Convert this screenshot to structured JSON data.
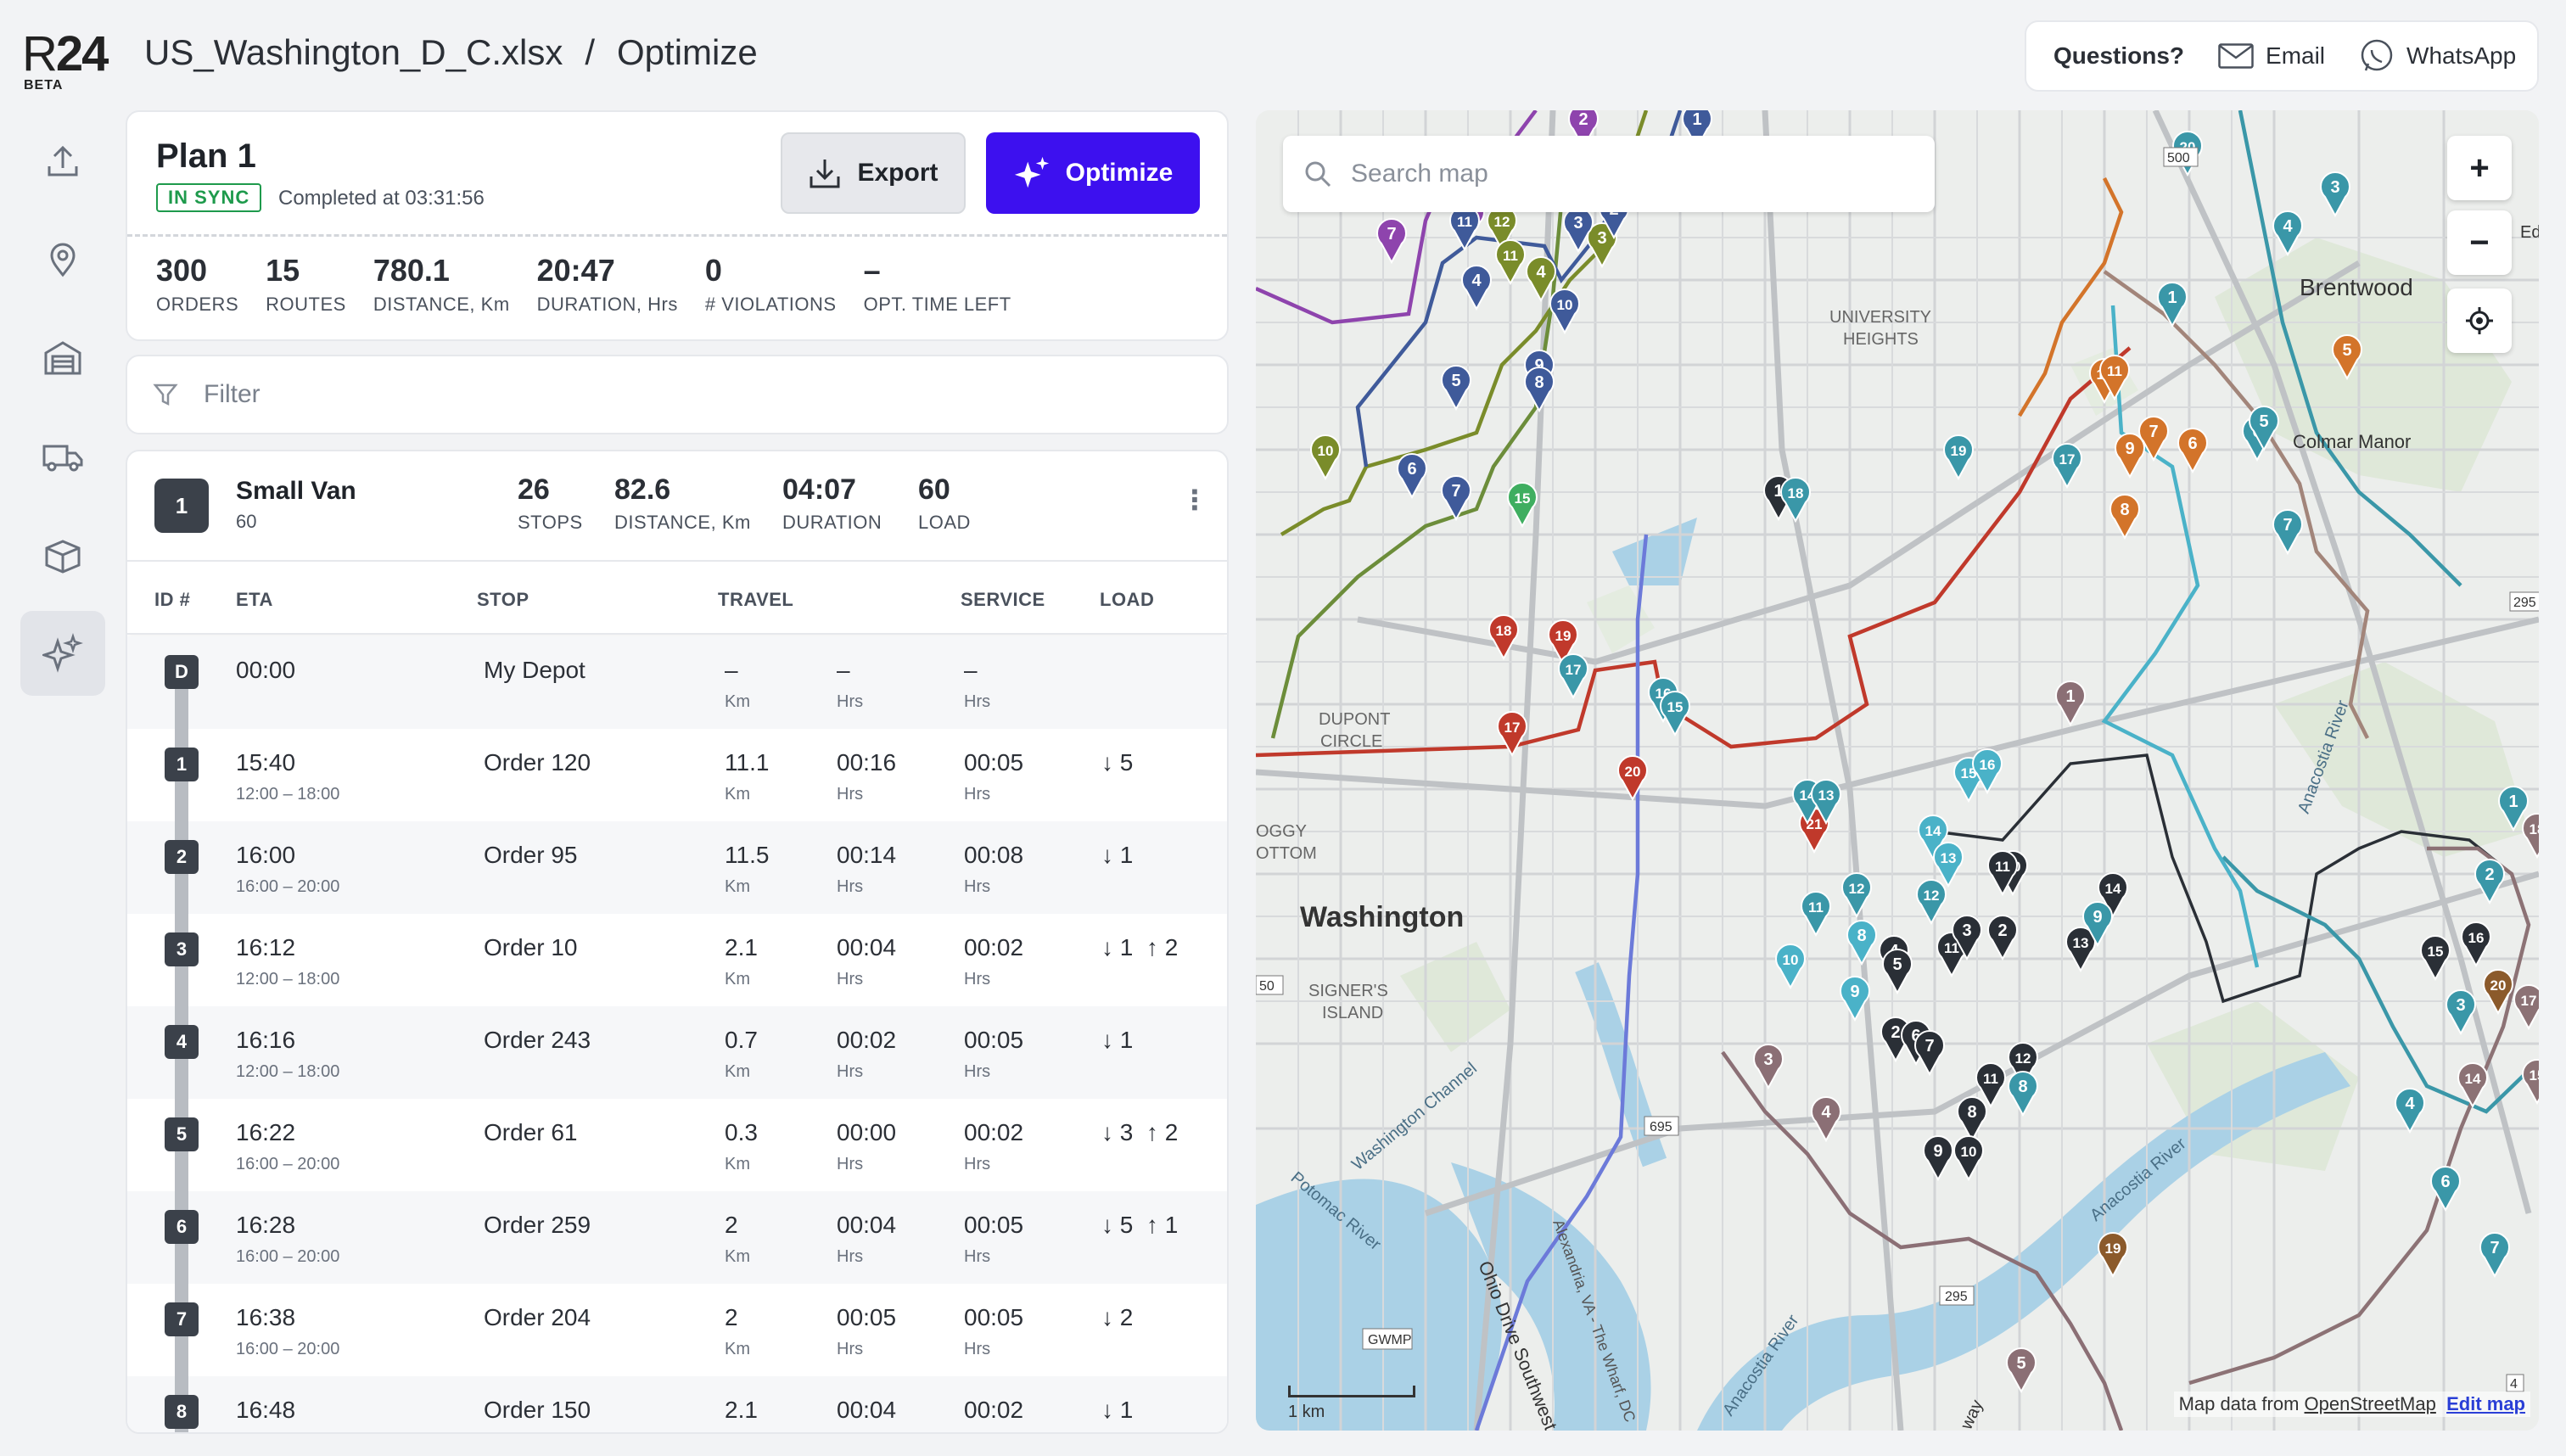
{
  "app": {
    "logo_r": "R",
    "logo_num": "24",
    "logo_beta": "BETA"
  },
  "breadcrumb": {
    "file": "US_Washington_D_C.xlsx",
    "separator": "/",
    "page": "Optimize"
  },
  "help": {
    "questions": "Questions?",
    "email": "Email",
    "whatsapp": "WhatsApp"
  },
  "sidebar": [
    {
      "name": "upload-icon"
    },
    {
      "name": "location-pin-icon"
    },
    {
      "name": "depot-icon"
    },
    {
      "name": "truck-icon"
    },
    {
      "name": "box-icon"
    },
    {
      "name": "sparkle-icon",
      "active": true
    }
  ],
  "plan": {
    "title": "Plan 1",
    "status": "IN SYNC",
    "completed": "Completed at 03:31:56",
    "export_label": "Export",
    "optimize_label": "Optimize",
    "stats": [
      {
        "value": "300",
        "label": "ORDERS"
      },
      {
        "value": "15",
        "label": "ROUTES"
      },
      {
        "value": "780.1",
        "label": "DISTANCE, Km"
      },
      {
        "value": "20:47",
        "label": "DURATION, Hrs"
      },
      {
        "value": "0",
        "label": "# VIOLATIONS"
      },
      {
        "value": "–",
        "label": "OPT. TIME LEFT"
      }
    ]
  },
  "filter": {
    "placeholder": "Filter"
  },
  "route": {
    "number": "1",
    "vehicle": "Small Van",
    "capacity": "60",
    "stops": {
      "value": "26",
      "label": "STOPS"
    },
    "distance": {
      "value": "82.6",
      "label": "DISTANCE, Km"
    },
    "duration": {
      "value": "04:07",
      "label": "DURATION"
    },
    "load": {
      "value": "60",
      "label": "LOAD"
    },
    "menu": "⋮"
  },
  "table": {
    "headers": {
      "id": "ID #",
      "eta": "ETA",
      "stop": "STOP",
      "travel": "TRAVEL",
      "service": "SERVICE",
      "load": "LOAD"
    },
    "rows": [
      {
        "id": "D",
        "eta": "00:00",
        "window": "",
        "stop": "My Depot",
        "dist": "–",
        "dist_unit": "Km",
        "time": "–",
        "time_unit": "Hrs",
        "service": "–",
        "service_unit": "Hrs",
        "load": ""
      },
      {
        "id": "1",
        "eta": "15:40",
        "window": "12:00 – 18:00",
        "stop": "Order 120",
        "dist": "11.1",
        "dist_unit": "Km",
        "time": "00:16",
        "time_unit": "Hrs",
        "service": "00:05",
        "service_unit": "Hrs",
        "load": "↓ 5"
      },
      {
        "id": "2",
        "eta": "16:00",
        "window": "16:00 – 20:00",
        "stop": "Order 95",
        "dist": "11.5",
        "dist_unit": "Km",
        "time": "00:14",
        "time_unit": "Hrs",
        "service": "00:08",
        "service_unit": "Hrs",
        "load": "↓ 1"
      },
      {
        "id": "3",
        "eta": "16:12",
        "window": "12:00 – 18:00",
        "stop": "Order 10",
        "dist": "2.1",
        "dist_unit": "Km",
        "time": "00:04",
        "time_unit": "Hrs",
        "service": "00:02",
        "service_unit": "Hrs",
        "load": "↓ 1  ↑ 2"
      },
      {
        "id": "4",
        "eta": "16:16",
        "window": "12:00 – 18:00",
        "stop": "Order 243",
        "dist": "0.7",
        "dist_unit": "Km",
        "time": "00:02",
        "time_unit": "Hrs",
        "service": "00:05",
        "service_unit": "Hrs",
        "load": "↓ 1"
      },
      {
        "id": "5",
        "eta": "16:22",
        "window": "16:00 – 20:00",
        "stop": "Order 61",
        "dist": "0.3",
        "dist_unit": "Km",
        "time": "00:00",
        "time_unit": "Hrs",
        "service": "00:02",
        "service_unit": "Hrs",
        "load": "↓ 3  ↑ 2"
      },
      {
        "id": "6",
        "eta": "16:28",
        "window": "16:00 – 20:00",
        "stop": "Order 259",
        "dist": "2",
        "dist_unit": "Km",
        "time": "00:04",
        "time_unit": "Hrs",
        "service": "00:05",
        "service_unit": "Hrs",
        "load": "↓ 5  ↑ 1"
      },
      {
        "id": "7",
        "eta": "16:38",
        "window": "16:00 – 20:00",
        "stop": "Order 204",
        "dist": "2",
        "dist_unit": "Km",
        "time": "00:05",
        "time_unit": "Hrs",
        "service": "00:05",
        "service_unit": "Hrs",
        "load": "↓ 2"
      },
      {
        "id": "8",
        "eta": "16:48",
        "window": "",
        "stop": "Order 150",
        "dist": "2.1",
        "dist_unit": "",
        "time": "00:04",
        "time_unit": "",
        "service": "00:02",
        "service_unit": "",
        "load": "↓ 1"
      }
    ]
  },
  "map": {
    "search_placeholder": "Search map",
    "zoom_in": "+",
    "zoom_out": "−",
    "labels": {
      "washington": "Washington",
      "brentwood": "Brentwood",
      "colmar": "Colmar Manor",
      "university_1": "UNIVERSITY",
      "university_2": "HEIGHTS",
      "dupont_1": "DUPONT",
      "dupont_2": "CIRCLE",
      "signers_1": "SIGNER'S",
      "signers_2": "ISLAND",
      "wash_channel": "Washington Channel",
      "potomac": "Potomac River",
      "ohio": "Ohio Drive Southwest",
      "anacostia_1": "Anacostia River",
      "anacostia_2": "Anacostia River",
      "anacostia_3": "Anacostia River",
      "alex": "Alexandria, VA - The Wharf, DC",
      "gwmp": "GWMP",
      "r695": "695",
      "r295": "295",
      "r50": "50",
      "r500": "500",
      "r295b": "295",
      "bottom_1": "OGGY",
      "bottom_2": "OTTOM",
      "edm": "Edm",
      "way": "way",
      "r4": "4"
    },
    "scale": "1 km",
    "attribution": "Map data from",
    "attribution_link": "OpenStreetMap",
    "edit_map": "Edit map"
  }
}
